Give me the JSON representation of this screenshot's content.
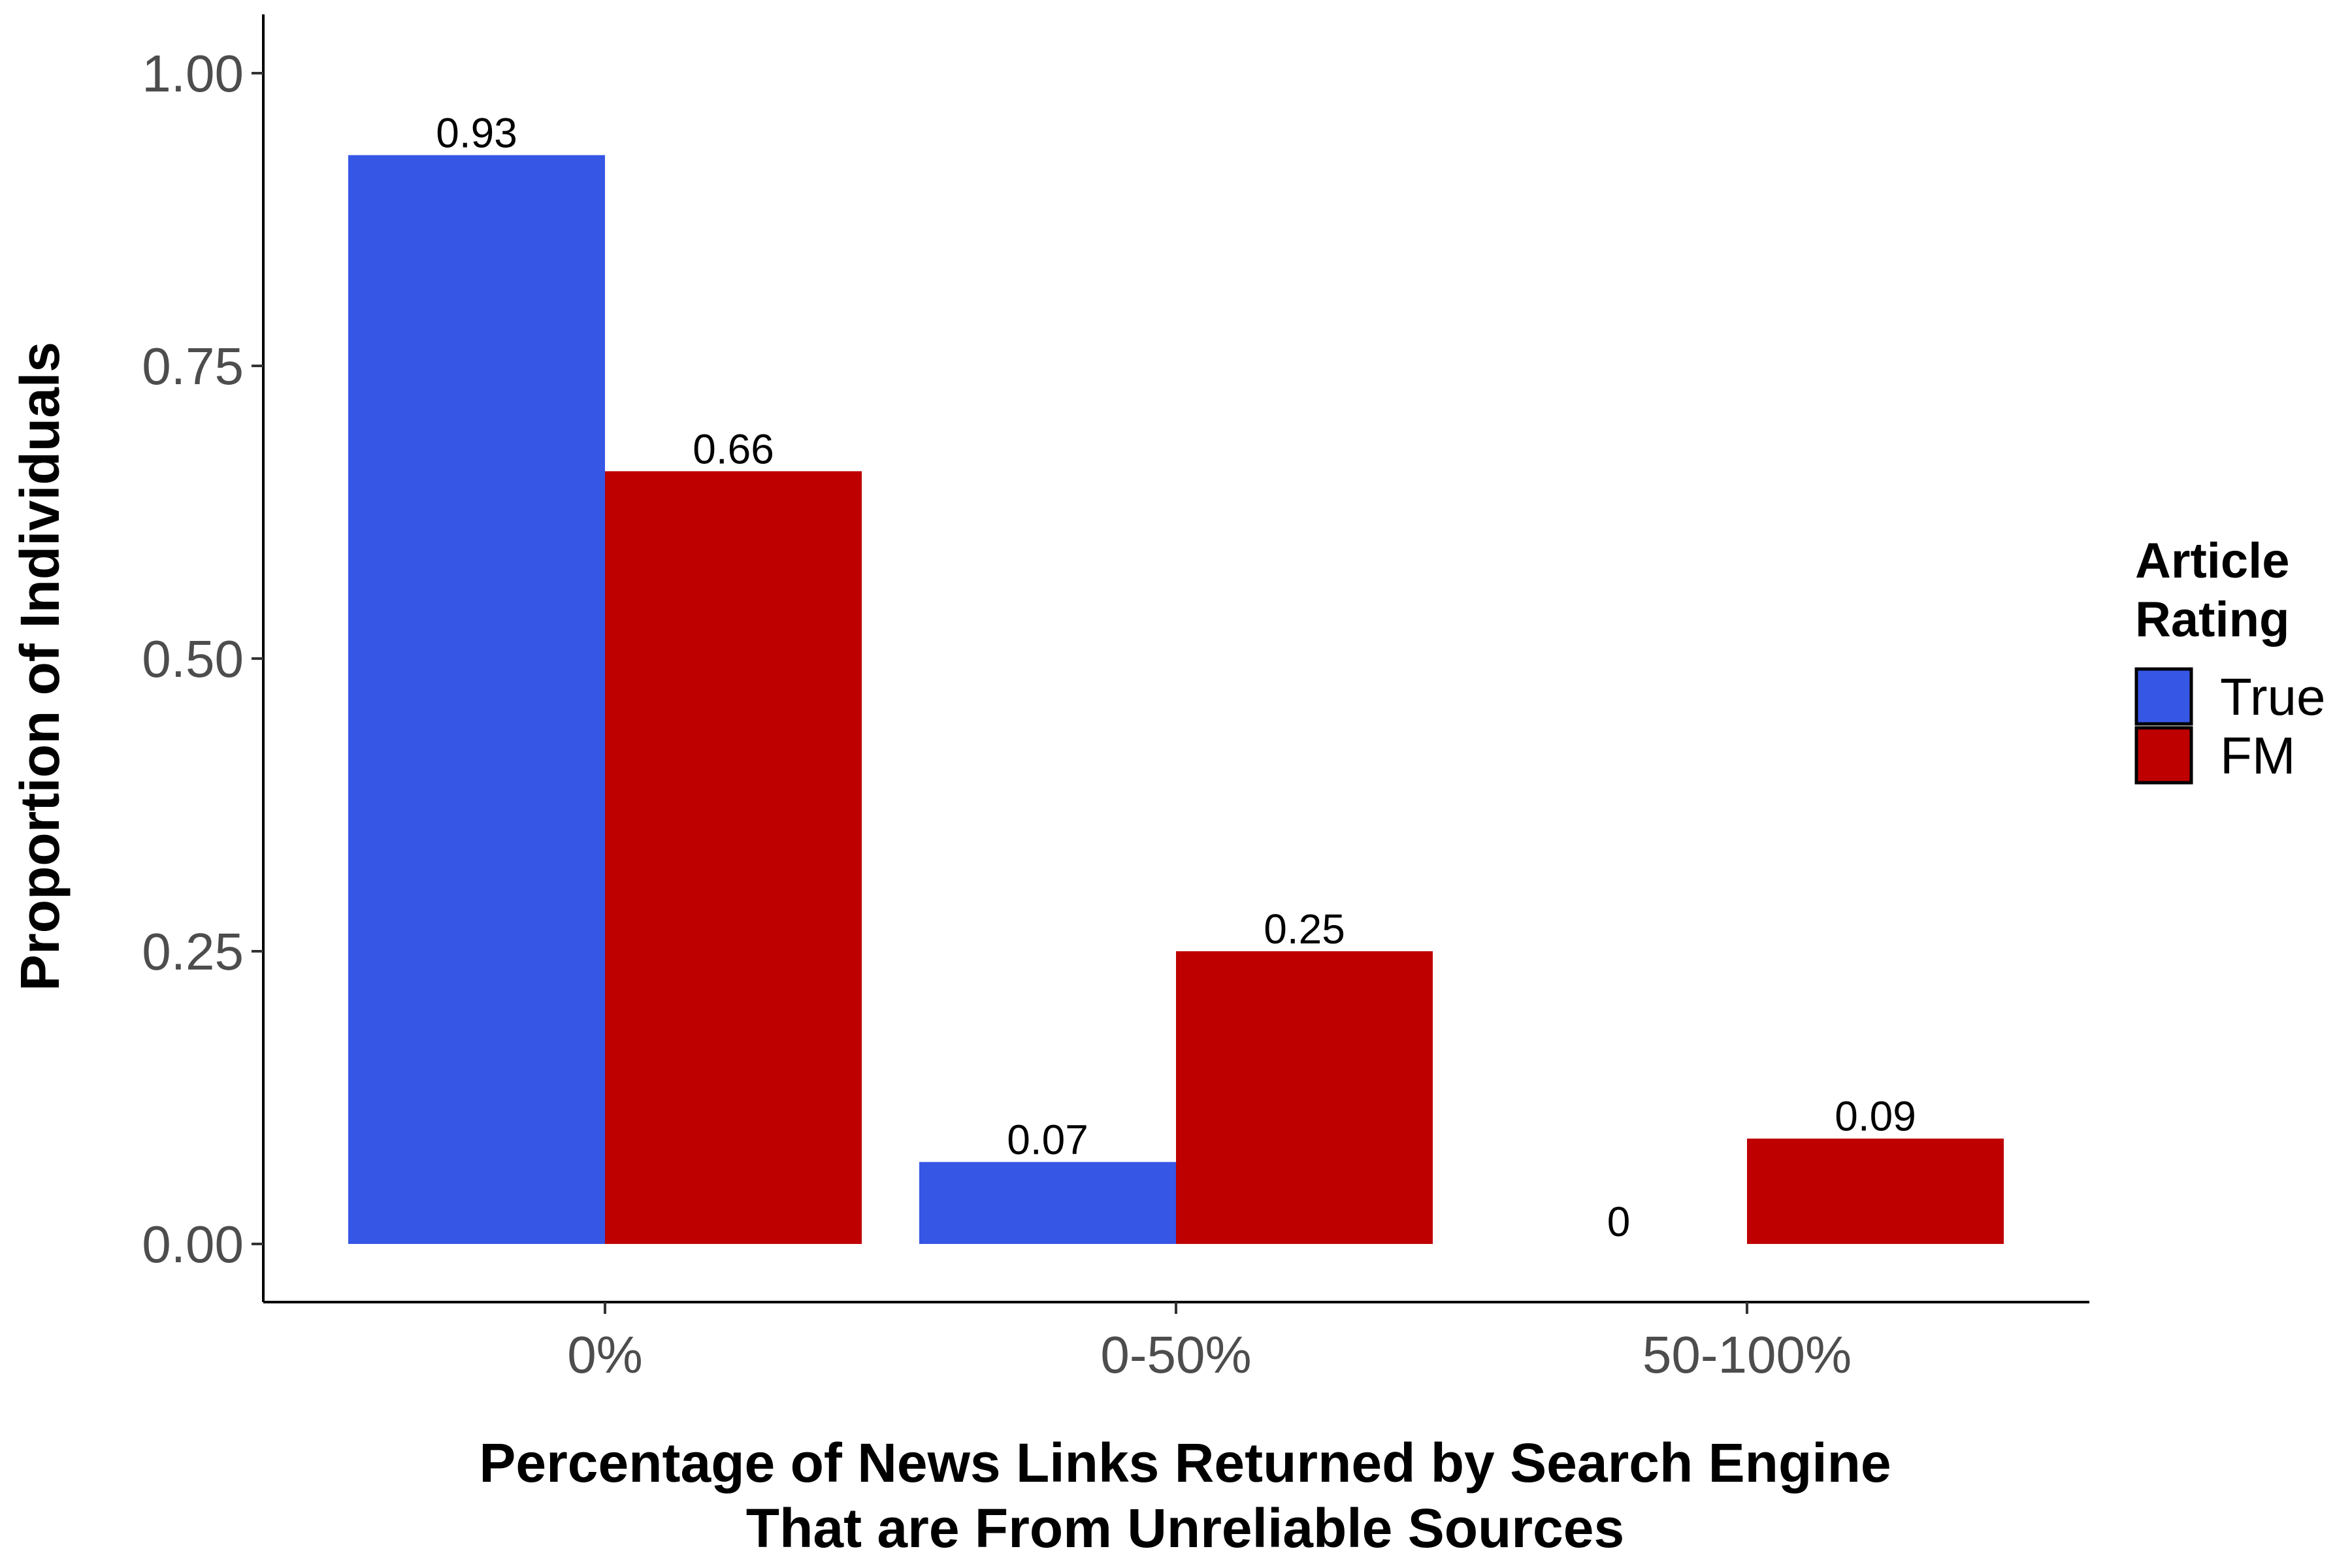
{
  "chart_data": {
    "type": "bar",
    "categories": [
      "0%",
      "0-50%",
      "50-100%"
    ],
    "series": [
      {
        "name": "True",
        "values": [
          0.93,
          0.07,
          0
        ],
        "labels": [
          "0.93",
          "0.07",
          "0"
        ],
        "color": "#3656E6"
      },
      {
        "name": "FM",
        "values": [
          0.66,
          0.25,
          0.09
        ],
        "labels": [
          "0.66",
          "0.25",
          "0.09"
        ],
        "color": "#BE0000"
      }
    ],
    "xlabel_lines": [
      "Percentage of News Links Returned by Search Engine",
      "That are From Unreliable Sources"
    ],
    "ylabel": "Proportion of Individuals",
    "ylim": [
      0,
      1.0
    ],
    "yticks": [
      0,
      0.25,
      0.5,
      0.75,
      1.0
    ],
    "ytick_labels": [
      "0.00",
      "0.25",
      "0.50",
      "0.75",
      "1.00"
    ],
    "legend": {
      "title_lines": [
        "Article",
        "Rating"
      ],
      "placement": "right"
    },
    "grid": false
  }
}
